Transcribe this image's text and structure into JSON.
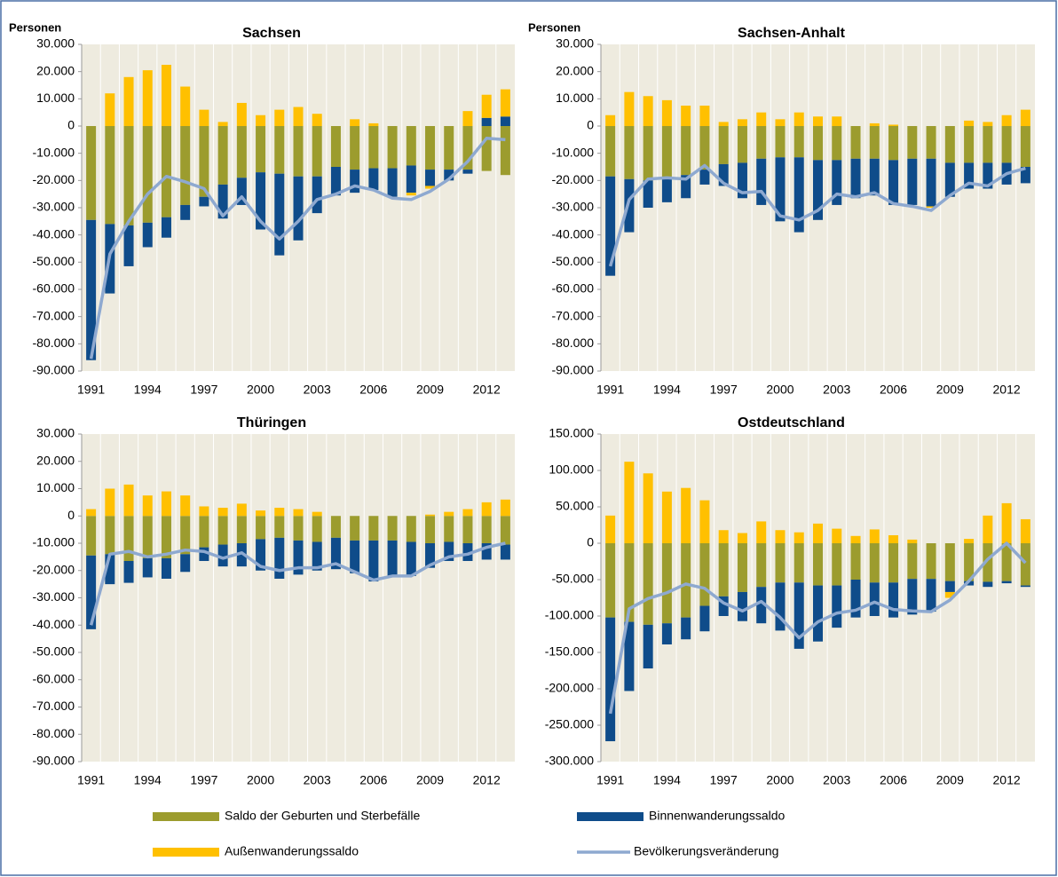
{
  "legend": [
    {
      "name": "Saldo der Geburten und Sterbefälle",
      "color": "#9c9c2e",
      "type": "bar"
    },
    {
      "name": "Binnenwanderungssaldo",
      "color": "#0f4c8a",
      "type": "bar"
    },
    {
      "name": "Außenwanderungssaldo",
      "color": "#ffc000",
      "type": "bar"
    },
    {
      "name": "Bevölkerungsveränderung",
      "color": "#8ea9d0",
      "type": "line"
    }
  ],
  "chart_data": [
    {
      "type": "bar",
      "title": "Sachsen",
      "y_label": "Personen",
      "categories": [
        "1991",
        null,
        null,
        "1994",
        null,
        null,
        "1997",
        null,
        null,
        "2000",
        null,
        null,
        "2003",
        null,
        null,
        "2006",
        null,
        null,
        "2009",
        null,
        null,
        "2012",
        null
      ],
      "ylim": [
        -90000,
        30000
      ],
      "yticks": [
        {
          "value": 30000,
          "label": "30.000"
        },
        {
          "value": 20000,
          "label": "20.000"
        },
        {
          "value": 10000,
          "label": "10.000"
        },
        0,
        {
          "value": -10000,
          "label": "-10.000"
        },
        {
          "value": -20000,
          "label": "-20.000"
        },
        {
          "value": -30000,
          "label": "-30.000"
        },
        {
          "value": -40000,
          "label": "-40.000"
        },
        {
          "value": -50000,
          "label": "-50.000"
        },
        {
          "value": -60000,
          "label": "-60.000"
        },
        {
          "value": -70000,
          "label": "-70.000"
        },
        {
          "value": -80000,
          "label": "-80.000"
        },
        {
          "value": -90000,
          "label": "-90.000"
        }
      ],
      "series": [
        {
          "values": [
            -34500,
            -36000,
            -36500,
            -35500,
            -33500,
            -29000,
            -26000,
            -21500,
            -19000,
            -17000,
            -17500,
            -18500,
            -18500,
            -15000,
            -16000,
            -15500,
            -15500,
            -14500,
            -16000,
            -16000,
            -16000,
            -16500,
            -18000
          ]
        },
        {
          "values": [
            -51500,
            -25500,
            -15000,
            -9000,
            -7500,
            -5500,
            -3500,
            -12500,
            -10000,
            -21000,
            -30000,
            -23500,
            -13500,
            -10500,
            -8500,
            -8000,
            -10500,
            -10000,
            -6000,
            -4000,
            -1500,
            3000,
            3500
          ]
        },
        {
          "values": [
            0,
            12000,
            18000,
            20500,
            22500,
            14500,
            6000,
            1500,
            8500,
            4000,
            6000,
            7000,
            4500,
            0,
            2500,
            1000,
            0,
            -1000,
            -1000,
            0,
            5500,
            8500,
            10000
          ]
        },
        {
          "values": [
            -85500,
            -47000,
            -35000,
            -25000,
            -18500,
            -20500,
            -23000,
            -33000,
            -26000,
            -35000,
            -41500,
            -35000,
            -27000,
            -25000,
            -22000,
            -23500,
            -26500,
            -27000,
            -24000,
            -19500,
            -13000,
            -4500,
            -5000
          ]
        }
      ]
    },
    {
      "type": "bar",
      "title": "Sachsen-Anhalt",
      "y_label": "Personen",
      "categories": [
        "1991",
        null,
        null,
        "1994",
        null,
        null,
        "1997",
        null,
        null,
        "2000",
        null,
        null,
        "2003",
        null,
        null,
        "2006",
        null,
        null,
        "2009",
        null,
        null,
        "2012",
        null
      ],
      "ylim": [
        -90000,
        30000
      ],
      "yticks": [
        {
          "value": 30000,
          "label": "30.000"
        },
        {
          "value": 20000,
          "label": "20.000"
        },
        {
          "value": 10000,
          "label": "10.000"
        },
        0,
        {
          "value": -10000,
          "label": "-10.000"
        },
        {
          "value": -20000,
          "label": "-20.000"
        },
        {
          "value": -30000,
          "label": "-30.000"
        },
        {
          "value": -40000,
          "label": "-40.000"
        },
        {
          "value": -50000,
          "label": "-50.000"
        },
        {
          "value": -60000,
          "label": "-60.000"
        },
        {
          "value": -70000,
          "label": "-70.000"
        },
        {
          "value": -80000,
          "label": "-80.000"
        },
        {
          "value": -90000,
          "label": "-90.000"
        }
      ],
      "series": [
        {
          "values": [
            -18500,
            -19500,
            -20000,
            -19500,
            -18000,
            -16000,
            -14000,
            -13500,
            -12000,
            -11500,
            -11500,
            -12500,
            -12500,
            -12000,
            -12000,
            -12500,
            -12000,
            -12000,
            -13500,
            -13500,
            -13500,
            -13500,
            -15000
          ]
        },
        {
          "values": [
            -36500,
            -19500,
            -10000,
            -8500,
            -8500,
            -5500,
            -8000,
            -13000,
            -17000,
            -23500,
            -27500,
            -22000,
            -16500,
            -14500,
            -13500,
            -16500,
            -17000,
            -17500,
            -12500,
            -9500,
            -9500,
            -8000,
            -6000
          ]
        },
        {
          "values": [
            4000,
            12500,
            11000,
            9500,
            7500,
            7500,
            1500,
            2500,
            5000,
            2500,
            5000,
            3500,
            3500,
            0,
            1000,
            500,
            0,
            -500,
            0,
            2000,
            1500,
            4000,
            6000
          ]
        },
        {
          "values": [
            -51500,
            -27000,
            -19500,
            -19000,
            -19500,
            -14500,
            -21000,
            -24500,
            -24000,
            -33000,
            -34500,
            -31000,
            -25000,
            -26000,
            -24500,
            -28500,
            -29500,
            -31000,
            -25500,
            -21000,
            -22000,
            -17500,
            -15500
          ]
        }
      ]
    },
    {
      "type": "bar",
      "title": "Thüringen",
      "categories": [
        "1991",
        null,
        null,
        "1994",
        null,
        null,
        "1997",
        null,
        null,
        "2000",
        null,
        null,
        "2003",
        null,
        null,
        "2006",
        null,
        null,
        "2009",
        null,
        null,
        "2012",
        null
      ],
      "ylim": [
        -90000,
        30000
      ],
      "yticks": [
        {
          "value": 30000,
          "label": "30.000"
        },
        {
          "value": 20000,
          "label": "20.000"
        },
        {
          "value": 10000,
          "label": "10.000"
        },
        0,
        {
          "value": -10000,
          "label": "-10.000"
        },
        {
          "value": -20000,
          "label": "-20.000"
        },
        {
          "value": -30000,
          "label": "-30.000"
        },
        {
          "value": -40000,
          "label": "-40.000"
        },
        {
          "value": -50000,
          "label": "-50.000"
        },
        {
          "value": -60000,
          "label": "-60.000"
        },
        {
          "value": -70000,
          "label": "-70.000"
        },
        {
          "value": -80000,
          "label": "-80.000"
        },
        {
          "value": -90000,
          "label": "-90.000"
        }
      ],
      "series": [
        {
          "values": [
            -14500,
            -14000,
            -16500,
            -15500,
            -15500,
            -14000,
            -11500,
            -10500,
            -10000,
            -8500,
            -8000,
            -9000,
            -9500,
            -8000,
            -9000,
            -9000,
            -9000,
            -9500,
            -10000,
            -9500,
            -10000,
            -10000,
            -10500
          ]
        },
        {
          "values": [
            -27000,
            -11000,
            -8000,
            -7000,
            -7500,
            -6500,
            -5000,
            -8000,
            -8500,
            -11500,
            -15000,
            -12500,
            -10500,
            -11500,
            -12000,
            -15000,
            -13500,
            -12500,
            -9000,
            -7000,
            -6500,
            -6000,
            -5500
          ]
        },
        {
          "values": [
            2500,
            10000,
            11500,
            7500,
            9000,
            7500,
            3500,
            3000,
            4500,
            2000,
            3000,
            2500,
            1500,
            0,
            0,
            0,
            0,
            0,
            500,
            1500,
            2500,
            5000,
            6000
          ]
        },
        {
          "values": [
            -40000,
            -14000,
            -13000,
            -15000,
            -14000,
            -12500,
            -13000,
            -15500,
            -13500,
            -18500,
            -20000,
            -19000,
            -19000,
            -17500,
            -20500,
            -23500,
            -22000,
            -22000,
            -18000,
            -15000,
            -14000,
            -11500,
            -10000
          ]
        }
      ]
    },
    {
      "type": "bar",
      "title": "Ostdeutschland",
      "categories": [
        "1991",
        null,
        null,
        "1994",
        null,
        null,
        "1997",
        null,
        null,
        "2000",
        null,
        null,
        "2003",
        null,
        null,
        "2006",
        null,
        null,
        "2009",
        null,
        null,
        "2012",
        null
      ],
      "ylim": [
        -300000,
        150000
      ],
      "yticks": [
        {
          "value": 150000,
          "label": "150.000"
        },
        {
          "value": 100000,
          "label": "100.000"
        },
        {
          "value": 50000,
          "label": "50.000"
        },
        0,
        {
          "value": -50000,
          "label": "-50.000"
        },
        {
          "value": -100000,
          "label": "-100.000"
        },
        {
          "value": -150000,
          "label": "-150.000"
        },
        {
          "value": -200000,
          "label": "-200.000"
        },
        {
          "value": -250000,
          "label": "-250.000"
        },
        {
          "value": -300000,
          "label": "-300.000"
        }
      ],
      "series": [
        {
          "values": [
            -102000,
            -108000,
            -112000,
            -110000,
            -102000,
            -86000,
            -73000,
            -67000,
            -60000,
            -54000,
            -54000,
            -58000,
            -58000,
            -50000,
            -54000,
            -54000,
            -49000,
            -49000,
            -52000,
            -52000,
            -53000,
            -52000,
            -58000
          ]
        },
        {
          "values": [
            -170000,
            -95000,
            -60000,
            -29000,
            -30000,
            -35000,
            -27000,
            -40000,
            -50000,
            -66000,
            -91000,
            -77000,
            -58000,
            -52000,
            -46000,
            -48000,
            -49000,
            -45000,
            -15000,
            -6000,
            -7000,
            -3000,
            -2000
          ]
        },
        {
          "values": [
            38000,
            112000,
            96000,
            71000,
            76000,
            59000,
            18000,
            14000,
            30000,
            18000,
            15000,
            27000,
            20000,
            10000,
            19000,
            11000,
            5000,
            0,
            -8000,
            6000,
            38000,
            55000,
            33000
          ]
        },
        {
          "values": [
            -234000,
            -90000,
            -76000,
            -68000,
            -56000,
            -62000,
            -82000,
            -93000,
            -80000,
            -102000,
            -130000,
            -108000,
            -96000,
            -92000,
            -81000,
            -91000,
            -93000,
            -94000,
            -78000,
            -52000,
            -22000,
            0,
            -27000
          ]
        }
      ]
    }
  ]
}
